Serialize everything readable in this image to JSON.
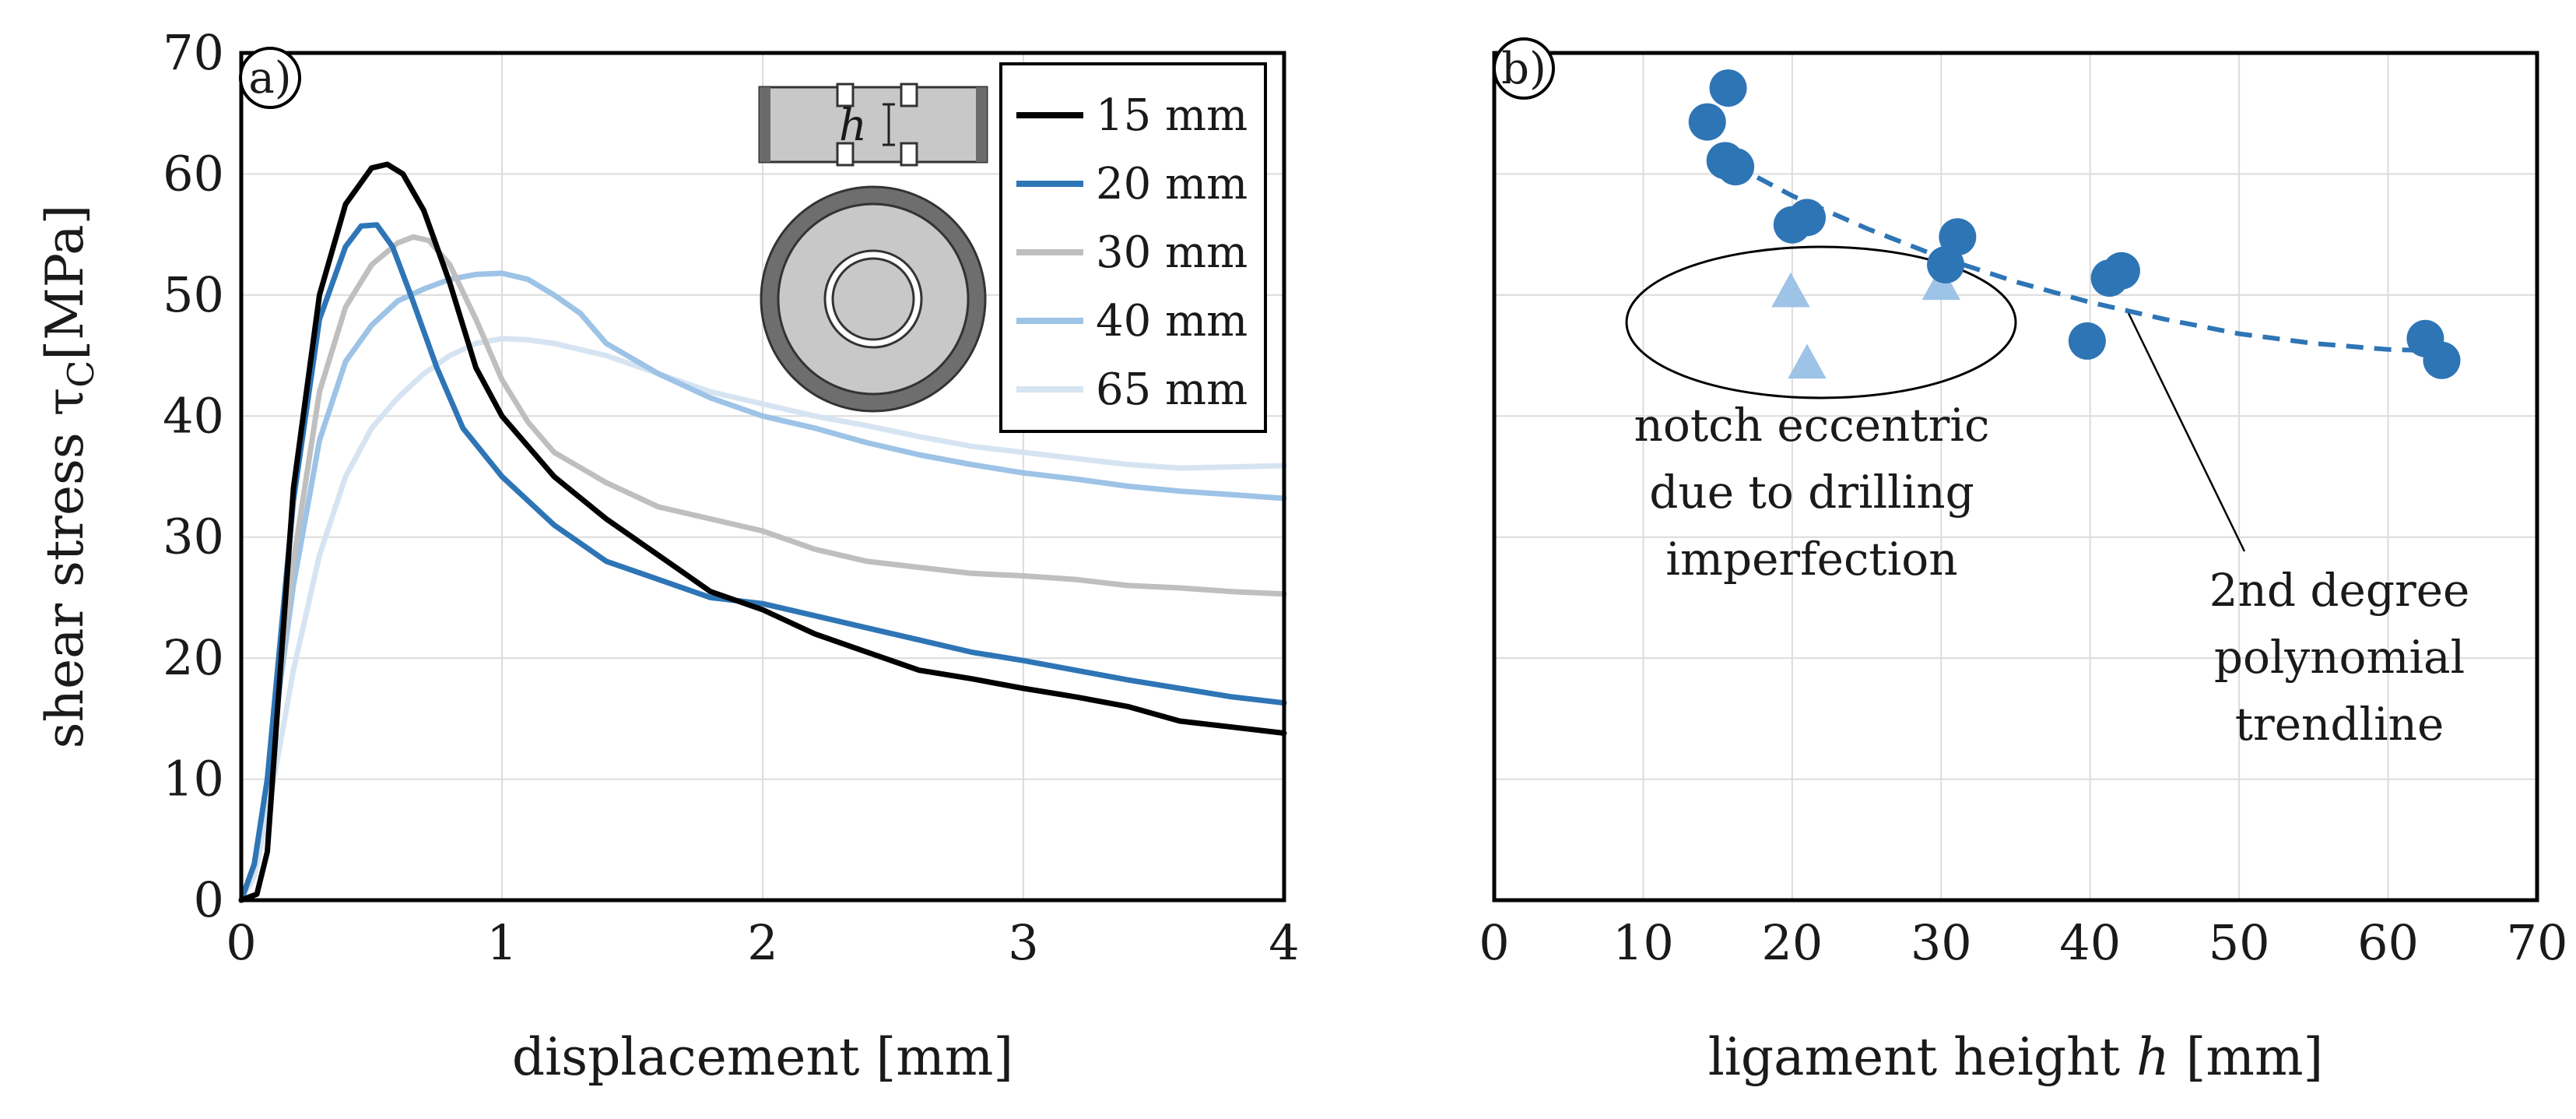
{
  "chart_data": [
    {
      "panel": "a)",
      "type": "line",
      "xlabel": "displacement [mm]",
      "ylabel_main": "shear stress τ",
      "ylabel_sub": "C",
      "ylabel_unit": "[MPa]",
      "xlim": [
        0,
        4
      ],
      "ylim": [
        0,
        70
      ],
      "xticks": [
        "0",
        "1",
        "2",
        "3",
        "4"
      ],
      "yticks": [
        "0",
        "10",
        "20",
        "30",
        "40",
        "50",
        "60",
        "70"
      ],
      "grid": true,
      "legend_position": "top-right",
      "inset_label": "h",
      "series": [
        {
          "name": "15 mm",
          "color": "#000000",
          "x": [
            0,
            0.06,
            0.1,
            0.14,
            0.2,
            0.3,
            0.4,
            0.5,
            0.56,
            0.62,
            0.7,
            0.8,
            0.9,
            1.0,
            1.2,
            1.4,
            1.6,
            1.8,
            2.0,
            2.2,
            2.4,
            2.6,
            2.8,
            3.0,
            3.2,
            3.4,
            3.6,
            3.8,
            4.0
          ],
          "y": [
            0,
            0.5,
            4,
            16,
            34,
            50,
            57.5,
            60.5,
            60.8,
            60,
            57,
            51,
            44,
            40,
            35,
            31.5,
            28.5,
            25.5,
            24,
            22,
            20.5,
            19,
            18.3,
            17.5,
            16.8,
            16,
            14.8,
            14.3,
            13.8
          ]
        },
        {
          "name": "20 mm",
          "color": "#2e75b6",
          "x": [
            0,
            0.05,
            0.1,
            0.2,
            0.3,
            0.4,
            0.46,
            0.52,
            0.58,
            0.65,
            0.75,
            0.85,
            1.0,
            1.2,
            1.4,
            1.6,
            1.8,
            2.0,
            2.2,
            2.4,
            2.6,
            2.8,
            3.0,
            3.2,
            3.4,
            3.6,
            3.8,
            4.0
          ],
          "y": [
            0,
            3,
            10,
            33,
            48,
            54,
            55.7,
            55.8,
            54,
            50,
            44,
            39,
            35,
            31,
            28,
            26.5,
            25,
            24.5,
            23.5,
            22.5,
            21.5,
            20.5,
            19.8,
            19,
            18.2,
            17.5,
            16.8,
            16.3
          ]
        },
        {
          "name": "30 mm",
          "color": "#bfbfbf",
          "x": [
            0,
            0.05,
            0.1,
            0.2,
            0.3,
            0.4,
            0.5,
            0.6,
            0.66,
            0.72,
            0.8,
            0.9,
            1.0,
            1.1,
            1.2,
            1.4,
            1.6,
            1.8,
            2.0,
            2.2,
            2.4,
            2.6,
            2.8,
            3.0,
            3.2,
            3.4,
            3.6,
            3.8,
            4.0
          ],
          "y": [
            0,
            3,
            10,
            28,
            42,
            49,
            52.5,
            54.3,
            54.8,
            54.5,
            52.5,
            48,
            43,
            39.5,
            37,
            34.5,
            32.5,
            31.5,
            30.5,
            29,
            28,
            27.5,
            27,
            26.8,
            26.5,
            26,
            25.8,
            25.5,
            25.3
          ]
        },
        {
          "name": "40 mm",
          "color": "#9dc3e6",
          "x": [
            0,
            0.05,
            0.1,
            0.2,
            0.3,
            0.4,
            0.5,
            0.6,
            0.7,
            0.8,
            0.9,
            1.0,
            1.1,
            1.2,
            1.3,
            1.4,
            1.6,
            1.8,
            2.0,
            2.2,
            2.4,
            2.6,
            2.8,
            3.0,
            3.2,
            3.4,
            3.6,
            3.8,
            4.0
          ],
          "y": [
            0,
            3,
            10,
            26,
            38,
            44.5,
            47.5,
            49.5,
            50.5,
            51.3,
            51.7,
            51.8,
            51.3,
            50,
            48.5,
            46,
            43.5,
            41.5,
            40,
            39,
            37.8,
            36.8,
            36,
            35.3,
            34.8,
            34.2,
            33.8,
            33.5,
            33.2
          ]
        },
        {
          "name": "65 mm",
          "color": "#d6e4f2",
          "x": [
            0,
            0.05,
            0.1,
            0.2,
            0.3,
            0.4,
            0.5,
            0.6,
            0.7,
            0.8,
            0.9,
            1.0,
            1.1,
            1.2,
            1.4,
            1.6,
            1.8,
            2.0,
            2.2,
            2.4,
            2.6,
            2.8,
            3.0,
            3.2,
            3.4,
            3.6,
            3.8,
            4.0
          ],
          "y": [
            0,
            2,
            7,
            19,
            28.5,
            35,
            39,
            41.5,
            43.5,
            45,
            46,
            46.4,
            46.3,
            46,
            45,
            43.5,
            42,
            41,
            40,
            39.2,
            38.3,
            37.5,
            37,
            36.5,
            36,
            35.7,
            35.8,
            35.9
          ]
        }
      ]
    },
    {
      "panel": "b)",
      "type": "scatter",
      "xlabel_main": "ligament height ",
      "xlabel_var": "h",
      "xlabel_unit": " [mm]",
      "xlim": [
        0,
        70
      ],
      "ylim": [
        0,
        70
      ],
      "xticks": [
        "0",
        "10",
        "20",
        "30",
        "40",
        "50",
        "60",
        "70"
      ],
      "grid": true,
      "series": [
        {
          "name": "circles",
          "marker": "circle",
          "color": "#2e75b6",
          "points": [
            [
              14.3,
              64.3
            ],
            [
              15.7,
              67.1
            ],
            [
              15.5,
              61.1
            ],
            [
              16.2,
              60.6
            ],
            [
              20.0,
              55.8
            ],
            [
              21.0,
              56.4
            ],
            [
              30.3,
              52.5
            ],
            [
              31.1,
              54.8
            ],
            [
              39.8,
              46.2
            ],
            [
              41.3,
              51.4
            ],
            [
              42.1,
              52.0
            ],
            [
              62.5,
              46.4
            ],
            [
              63.6,
              44.6
            ]
          ]
        },
        {
          "name": "triangles",
          "marker": "triangle",
          "color": "#9dc3e6",
          "points": [
            [
              19.9,
              50.2
            ],
            [
              21.0,
              44.3
            ],
            [
              30.0,
              50.8
            ]
          ]
        },
        {
          "name": "trendline",
          "style": "dashed",
          "color": "#2e75b6",
          "x": [
            16,
            20,
            25,
            30,
            35,
            40,
            45,
            50,
            55,
            60,
            63
          ],
          "y": [
            60.8,
            58.2,
            55.5,
            53.1,
            51.1,
            49.4,
            48.0,
            46.8,
            46.0,
            45.5,
            45.4
          ]
        }
      ],
      "annotations": {
        "notch_lines": [
          "notch eccentric",
          "due to drilling",
          "imperfection"
        ],
        "trend_lines": [
          "2nd degree",
          "polynomial",
          "trendline"
        ]
      }
    }
  ]
}
